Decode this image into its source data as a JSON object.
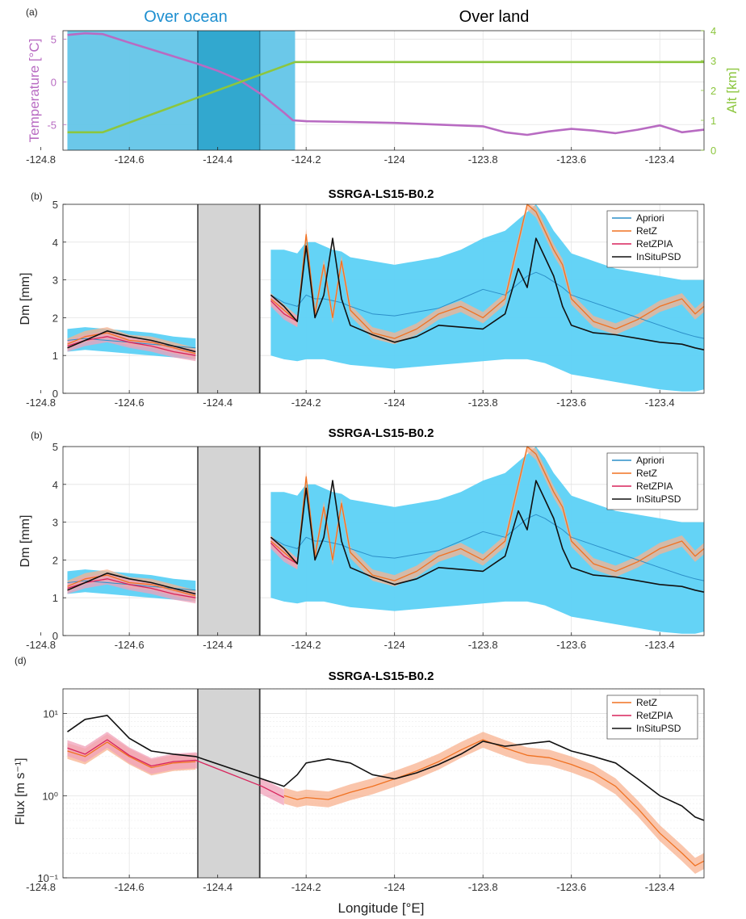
{
  "figure_xlabel": "Longitude [°E]",
  "chart_data": [
    {
      "type": "line",
      "panel_label": "(a)",
      "title": "",
      "region_labels": [
        "Over ocean",
        "Over land"
      ],
      "region_label_colors": [
        "#1e8fd0",
        "#000000"
      ],
      "ylabel": "Temperature [°C]",
      "ylabel_right": "Alt [km]",
      "xlim": [
        -124.75,
        -123.3
      ],
      "ylim": [
        -8,
        6
      ],
      "ylim_right": [
        0,
        4
      ],
      "xticks": [
        "-124.8",
        "-124.6",
        "-124.4",
        "-124.2",
        "-124",
        "-123.8",
        "-123.6",
        "-123.4"
      ],
      "yticks": [
        "-5",
        "0",
        "5"
      ],
      "yticks_right": [
        "0",
        "1",
        "2",
        "3",
        "4"
      ],
      "grid": true,
      "shaded_regions": [
        {
          "x": [
            -124.74,
            -124.225
          ],
          "color": "#63c5e8"
        },
        {
          "x": [
            -124.445,
            -124.305
          ],
          "color": "#2fa6cd"
        }
      ],
      "series": [
        {
          "name": "Temperature",
          "axis": "left",
          "color": "#b86bc2",
          "x": [
            -124.74,
            -124.7,
            -124.66,
            -124.6,
            -124.55,
            -124.5,
            -124.45,
            -124.4,
            -124.35,
            -124.3,
            -124.25,
            -124.23,
            -124.2,
            -124.1,
            -124.0,
            -123.9,
            -123.8,
            -123.75,
            -123.7,
            -123.65,
            -123.6,
            -123.55,
            -123.5,
            -123.45,
            -123.4,
            -123.35,
            -123.3
          ],
          "values": [
            5.5,
            5.7,
            5.6,
            4.6,
            3.8,
            3.0,
            2.2,
            1.3,
            0.2,
            -1.5,
            -3.6,
            -4.5,
            -4.6,
            -4.7,
            -4.8,
            -5.0,
            -5.2,
            -5.9,
            -6.2,
            -5.8,
            -5.5,
            -5.7,
            -6.0,
            -5.6,
            -5.1,
            -5.9,
            -5.6
          ]
        },
        {
          "name": "Altitude",
          "axis": "right",
          "color": "#8cc63e",
          "x": [
            -124.74,
            -124.66,
            -124.225,
            -124.2,
            -123.3
          ],
          "values": [
            0.6,
            0.6,
            2.95,
            2.95,
            2.95
          ]
        }
      ]
    },
    {
      "type": "line",
      "panel_label": "(b)",
      "title": "SSRGA-LS15-B0.2",
      "ylabel": "Dm [mm]",
      "xlim": [
        -124.75,
        -123.3
      ],
      "ylim": [
        0,
        5
      ],
      "xticks": [
        "-124.8",
        "-124.6",
        "-124.4",
        "-124.2",
        "-124",
        "-123.8",
        "-123.6",
        "-123.4"
      ],
      "yticks": [
        "0",
        "1",
        "2",
        "3",
        "4",
        "5"
      ],
      "grid": true,
      "legend": "top-right",
      "gap_region": [
        -124.445,
        -124.305
      ],
      "x": [
        -124.74,
        -124.7,
        -124.65,
        -124.6,
        -124.55,
        -124.5,
        -124.45,
        -124.3,
        -124.28,
        -124.25,
        -124.22,
        -124.2,
        -124.18,
        -124.16,
        -124.14,
        -124.12,
        -124.1,
        -124.05,
        -124.0,
        -123.95,
        -123.9,
        -123.85,
        -123.8,
        -123.75,
        -123.72,
        -123.7,
        -123.68,
        -123.66,
        -123.64,
        -123.62,
        -123.6,
        -123.55,
        -123.5,
        -123.45,
        -123.4,
        -123.35,
        -123.32,
        -123.3
      ],
      "series": [
        {
          "name": "Apriori",
          "color": "#2c8fc8",
          "band_color": "#5cd1f6",
          "values": [
            1.4,
            1.45,
            1.4,
            1.35,
            1.3,
            1.25,
            1.2,
            null,
            2.6,
            2.4,
            2.3,
            2.6,
            2.5,
            2.5,
            2.45,
            2.4,
            2.3,
            2.1,
            2.05,
            2.15,
            2.25,
            2.5,
            2.75,
            2.6,
            2.9,
            3.1,
            3.2,
            3.1,
            2.95,
            2.8,
            2.6,
            2.4,
            2.2,
            2.0,
            1.8,
            1.6,
            1.5,
            1.45
          ],
          "band_low": [
            1.1,
            1.15,
            1.1,
            1.05,
            1.0,
            0.95,
            0.9,
            null,
            1.0,
            0.9,
            0.85,
            0.9,
            0.9,
            0.9,
            0.85,
            0.8,
            0.75,
            0.7,
            0.65,
            0.7,
            0.75,
            0.8,
            0.85,
            0.9,
            0.9,
            0.9,
            0.85,
            0.8,
            0.7,
            0.6,
            0.5,
            0.4,
            0.3,
            0.2,
            0.1,
            0.05,
            0.05,
            0.1
          ],
          "band_high": [
            1.7,
            1.75,
            1.7,
            1.65,
            1.6,
            1.5,
            1.45,
            null,
            3.8,
            3.8,
            3.7,
            4.0,
            4.0,
            3.9,
            3.8,
            3.75,
            3.6,
            3.5,
            3.4,
            3.5,
            3.6,
            3.8,
            4.1,
            4.3,
            4.6,
            4.8,
            5.0,
            4.7,
            4.3,
            4.0,
            3.7,
            3.5,
            3.3,
            3.2,
            3.1,
            3.0,
            3.0,
            3.0
          ]
        },
        {
          "name": "RetZ",
          "color": "#f07222",
          "band_color": "#f8b28f",
          "values": [
            1.3,
            1.5,
            1.6,
            1.4,
            1.35,
            1.2,
            1.05,
            null,
            2.5,
            2.2,
            1.9,
            4.2,
            2.1,
            3.4,
            2.0,
            3.5,
            2.2,
            1.6,
            1.45,
            1.7,
            2.1,
            2.3,
            2.0,
            2.5,
            4.0,
            5.0,
            4.8,
            4.3,
            3.8,
            3.4,
            2.5,
            1.9,
            1.7,
            1.95,
            2.3,
            2.5,
            2.1,
            2.3
          ]
        },
        {
          "name": "RetZPIA",
          "color": "#d8245c",
          "band_color": "#f0a0b8",
          "values": [
            1.25,
            1.4,
            1.5,
            1.35,
            1.25,
            1.1,
            1.0,
            null,
            2.45,
            2.1,
            1.9,
            null,
            null,
            null,
            null,
            null,
            null,
            null,
            null,
            null,
            null,
            null,
            null,
            null,
            null,
            null,
            null,
            null,
            null,
            null,
            null,
            null,
            null,
            null,
            null,
            null,
            null,
            null
          ]
        },
        {
          "name": "InSituPSD",
          "color": "#111111",
          "values": [
            1.2,
            1.4,
            1.65,
            1.5,
            1.4,
            1.25,
            1.1,
            null,
            2.6,
            2.3,
            1.9,
            3.9,
            2.0,
            2.6,
            4.1,
            2.5,
            1.8,
            1.55,
            1.35,
            1.5,
            1.8,
            1.75,
            1.7,
            2.1,
            3.3,
            2.8,
            4.1,
            3.6,
            3.1,
            2.3,
            1.8,
            1.6,
            1.55,
            1.45,
            1.35,
            1.3,
            1.2,
            1.15
          ]
        }
      ]
    },
    {
      "type": "line",
      "panel_label": "(b)",
      "title": "SSRGA-LS15-B0.2",
      "ylabel": "Dm [mm]",
      "xlim": [
        -124.75,
        -123.3
      ],
      "ylim": [
        0,
        5
      ],
      "xticks": [
        "-124.8",
        "-124.6",
        "-124.4",
        "-124.2",
        "-124",
        "-123.8",
        "-123.6",
        "-123.4"
      ],
      "yticks": [
        "0",
        "1",
        "2",
        "3",
        "4",
        "5"
      ],
      "grid": true,
      "legend": "top-right",
      "gap_region": [
        -124.445,
        -124.305
      ],
      "x": [
        -124.74,
        -124.7,
        -124.65,
        -124.6,
        -124.55,
        -124.5,
        -124.45,
        -124.3,
        -124.28,
        -124.25,
        -124.22,
        -124.2,
        -124.18,
        -124.16,
        -124.14,
        -124.12,
        -124.1,
        -124.05,
        -124.0,
        -123.95,
        -123.9,
        -123.85,
        -123.8,
        -123.75,
        -123.72,
        -123.7,
        -123.68,
        -123.66,
        -123.64,
        -123.62,
        -123.6,
        -123.55,
        -123.5,
        -123.45,
        -123.4,
        -123.35,
        -123.32,
        -123.3
      ],
      "series": [
        {
          "name": "Apriori",
          "color": "#2c8fc8",
          "band_color": "#5cd1f6",
          "values": [
            1.4,
            1.45,
            1.4,
            1.35,
            1.3,
            1.25,
            1.2,
            null,
            2.6,
            2.4,
            2.3,
            2.6,
            2.5,
            2.5,
            2.45,
            2.4,
            2.3,
            2.1,
            2.05,
            2.15,
            2.25,
            2.5,
            2.75,
            2.6,
            2.9,
            3.1,
            3.2,
            3.1,
            2.95,
            2.8,
            2.6,
            2.4,
            2.2,
            2.0,
            1.8,
            1.6,
            1.5,
            1.45
          ],
          "band_low": [
            1.1,
            1.15,
            1.1,
            1.05,
            1.0,
            0.95,
            0.9,
            null,
            1.0,
            0.9,
            0.85,
            0.9,
            0.9,
            0.9,
            0.85,
            0.8,
            0.75,
            0.7,
            0.65,
            0.7,
            0.75,
            0.8,
            0.85,
            0.9,
            0.9,
            0.9,
            0.85,
            0.8,
            0.7,
            0.6,
            0.5,
            0.4,
            0.3,
            0.2,
            0.1,
            0.05,
            0.05,
            0.1
          ],
          "band_high": [
            1.7,
            1.75,
            1.7,
            1.65,
            1.6,
            1.5,
            1.45,
            null,
            3.8,
            3.8,
            3.7,
            4.0,
            4.0,
            3.9,
            3.8,
            3.75,
            3.6,
            3.5,
            3.4,
            3.5,
            3.6,
            3.8,
            4.1,
            4.3,
            4.6,
            4.8,
            5.0,
            4.7,
            4.3,
            4.0,
            3.7,
            3.5,
            3.3,
            3.2,
            3.1,
            3.0,
            3.0,
            3.0
          ]
        },
        {
          "name": "RetZ",
          "color": "#f07222",
          "band_color": "#f8b28f",
          "values": [
            1.3,
            1.5,
            1.6,
            1.4,
            1.35,
            1.2,
            1.05,
            null,
            2.5,
            2.2,
            1.9,
            4.2,
            2.1,
            3.4,
            2.0,
            3.5,
            2.2,
            1.6,
            1.45,
            1.7,
            2.1,
            2.3,
            2.0,
            2.5,
            4.0,
            5.0,
            4.8,
            4.3,
            3.8,
            3.4,
            2.5,
            1.9,
            1.7,
            1.95,
            2.3,
            2.5,
            2.1,
            2.3
          ]
        },
        {
          "name": "RetZPIA",
          "color": "#d8245c",
          "band_color": "#f0a0b8",
          "values": [
            1.25,
            1.4,
            1.5,
            1.35,
            1.25,
            1.1,
            1.0,
            null,
            2.45,
            2.1,
            1.9,
            null,
            null,
            null,
            null,
            null,
            null,
            null,
            null,
            null,
            null,
            null,
            null,
            null,
            null,
            null,
            null,
            null,
            null,
            null,
            null,
            null,
            null,
            null,
            null,
            null,
            null,
            null
          ]
        },
        {
          "name": "InSituPSD",
          "color": "#111111",
          "values": [
            1.2,
            1.4,
            1.65,
            1.5,
            1.4,
            1.25,
            1.1,
            null,
            2.6,
            2.3,
            1.9,
            3.9,
            2.0,
            2.6,
            4.1,
            2.5,
            1.8,
            1.55,
            1.35,
            1.5,
            1.8,
            1.75,
            1.7,
            2.1,
            3.3,
            2.8,
            4.1,
            3.6,
            3.1,
            2.3,
            1.8,
            1.6,
            1.55,
            1.45,
            1.35,
            1.3,
            1.2,
            1.15
          ]
        }
      ]
    },
    {
      "type": "line",
      "panel_label": "(d)",
      "title": "SSRGA-LS15-B0.2",
      "ylabel": "Flux [m s⁻¹]",
      "yscale": "log",
      "xlim": [
        -124.75,
        -123.3
      ],
      "ylim": [
        0.1,
        20
      ],
      "xticks": [
        "-124.8",
        "-124.6",
        "-124.4",
        "-124.2",
        "-124",
        "-123.8",
        "-123.6",
        "-123.4"
      ],
      "yticks": [
        "10⁻¹",
        "10⁰",
        "10¹"
      ],
      "ytick_values": [
        0.1,
        1,
        10
      ],
      "grid": true,
      "legend": "top-right",
      "gap_region": [
        -124.445,
        -124.305
      ],
      "x": [
        -124.74,
        -124.7,
        -124.65,
        -124.6,
        -124.55,
        -124.5,
        -124.45,
        -124.3,
        -124.25,
        -124.22,
        -124.2,
        -124.15,
        -124.1,
        -124.05,
        -124.0,
        -123.95,
        -123.9,
        -123.85,
        -123.8,
        -123.75,
        -123.7,
        -123.65,
        -123.6,
        -123.55,
        -123.5,
        -123.45,
        -123.4,
        -123.35,
        -123.32,
        -123.3
      ],
      "series": [
        {
          "name": "RetZ",
          "color": "#f07222",
          "band_color": "#f8b28f",
          "values": [
            3.5,
            3.0,
            4.5,
            3.0,
            2.2,
            2.5,
            2.6,
            null,
            1.0,
            0.9,
            0.95,
            0.9,
            1.1,
            1.3,
            1.6,
            2.0,
            2.6,
            3.6,
            4.8,
            3.8,
            3.1,
            2.9,
            2.4,
            1.9,
            1.3,
            0.7,
            0.35,
            0.2,
            0.14,
            0.16
          ]
        },
        {
          "name": "RetZPIA",
          "color": "#d8245c",
          "band_color": "#f0a0b8",
          "values": [
            3.8,
            3.2,
            4.8,
            3.1,
            2.3,
            2.6,
            2.7,
            1.3,
            0.95,
            null,
            null,
            null,
            null,
            null,
            null,
            null,
            null,
            null,
            null,
            null,
            null,
            null,
            null,
            null,
            null,
            null,
            null,
            null,
            null,
            null
          ]
        },
        {
          "name": "InSituPSD",
          "color": "#111111",
          "values": [
            6.0,
            8.5,
            9.5,
            5.0,
            3.5,
            3.2,
            3.0,
            1.6,
            1.3,
            1.8,
            2.5,
            2.8,
            2.5,
            1.8,
            1.6,
            1.9,
            2.4,
            3.2,
            4.6,
            4.0,
            4.3,
            4.6,
            3.5,
            3.0,
            2.5,
            1.6,
            1.0,
            0.75,
            0.55,
            0.5
          ]
        }
      ]
    }
  ]
}
